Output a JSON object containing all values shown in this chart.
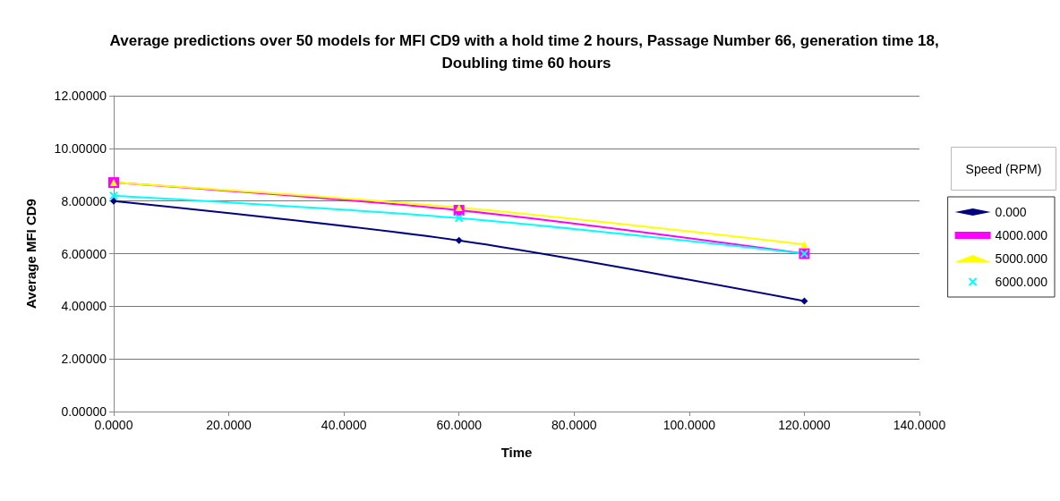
{
  "chart_data": {
    "type": "line",
    "title": "Average predictions over 50 models for MFI CD9 with a hold time 2 hours, Passage Number 66, generation time 18, Doubling time 60 hours",
    "xlabel": "Time",
    "ylabel": "Average MFI CD9",
    "legend_title": "Speed (RPM)",
    "x": [
      0,
      60,
      120
    ],
    "series": [
      {
        "name": "0.000",
        "color": "#000080",
        "marker": "diamond",
        "values": [
          8.0,
          6.5,
          4.2
        ]
      },
      {
        "name": "4000.000",
        "color": "#ff00ff",
        "marker": "square",
        "values": [
          8.7,
          7.65,
          6.0
        ]
      },
      {
        "name": "5000.000",
        "color": "#ffff00",
        "marker": "triangle",
        "values": [
          8.7,
          7.75,
          6.35
        ]
      },
      {
        "name": "6000.000",
        "color": "#00ffff",
        "marker": "cross",
        "values": [
          8.2,
          7.35,
          6.0
        ]
      }
    ],
    "xlim": [
      0,
      140
    ],
    "xticks": [
      {
        "value": 0,
        "label": "0.0000"
      },
      {
        "value": 20,
        "label": "20.0000"
      },
      {
        "value": 40,
        "label": "40.0000"
      },
      {
        "value": 60,
        "label": "60.0000"
      },
      {
        "value": 80,
        "label": "80.0000"
      },
      {
        "value": 100,
        "label": "100.0000"
      },
      {
        "value": 120,
        "label": "120.0000"
      },
      {
        "value": 140,
        "label": "140.0000"
      }
    ],
    "ylim": [
      0,
      12
    ],
    "yticks": [
      {
        "value": 0,
        "label": "0.00000"
      },
      {
        "value": 2,
        "label": "2.00000"
      },
      {
        "value": 4,
        "label": "4.00000"
      },
      {
        "value": 6,
        "label": "6.00000"
      },
      {
        "value": 8,
        "label": "8.00000"
      },
      {
        "value": 10,
        "label": "10.00000"
      },
      {
        "value": 12,
        "label": "12.00000"
      }
    ],
    "grid": "y",
    "legend": "right",
    "line_style": "solid"
  }
}
